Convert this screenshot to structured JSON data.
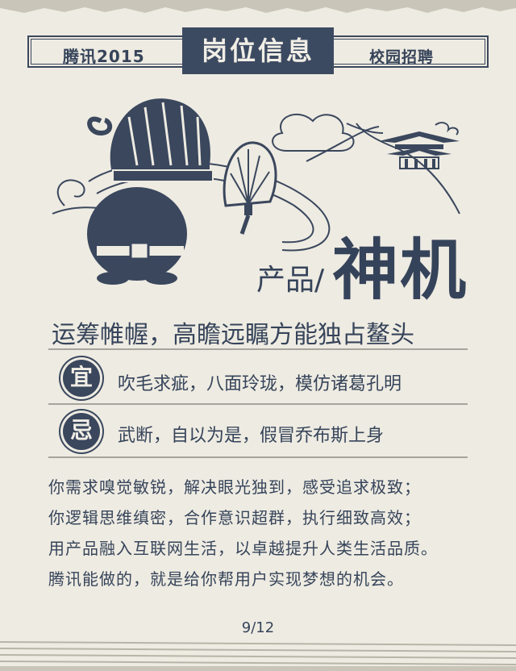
{
  "header": {
    "left": "腾讯2015",
    "center": "岗位信息",
    "right": "校园招聘"
  },
  "category": {
    "prefix": "产品/",
    "name": "神机"
  },
  "motto": "运筹帷幄，高瞻远瞩方能独占鳌头",
  "dos": {
    "badge": "宜",
    "text": "吹毛求疵，八面玲珑，模仿诸葛孔明"
  },
  "donts": {
    "badge": "忌",
    "text": "武断，自以为是，假冒乔布斯上身"
  },
  "description": [
    "你需求嗅觉敏锐，解决眼光独到，感受追求极致；",
    "你逻辑思维缜密，合作意识超群，执行细致高效；",
    "用产品融入互联网生活，以卓越提升人类生活品质。",
    "腾讯能做的，就是给你帮用户实现梦想的机会。"
  ],
  "page_indicator": "9/12",
  "colors": {
    "ink": "#36445a",
    "paper": "#eeebe2",
    "band": "#3c4a61"
  }
}
